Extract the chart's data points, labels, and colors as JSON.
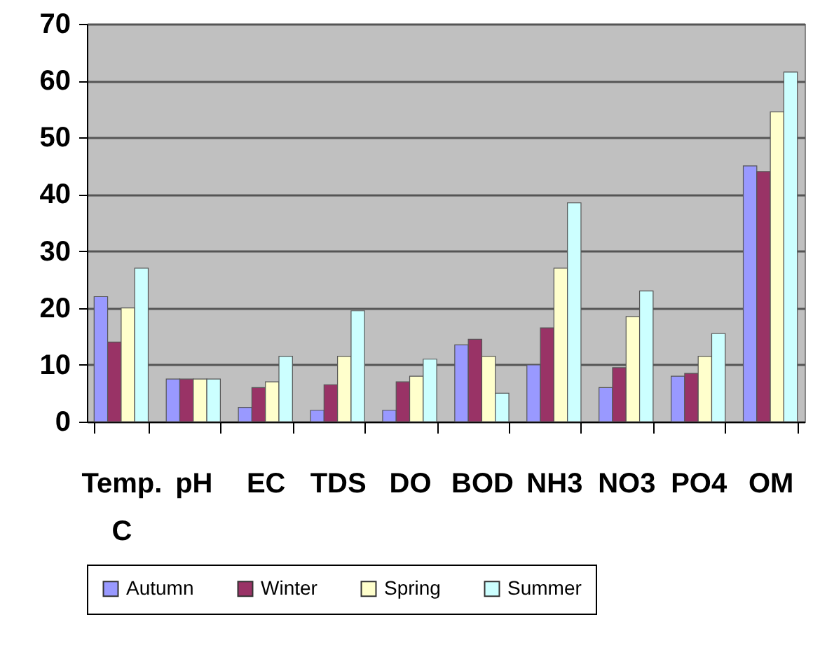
{
  "chart_data": {
    "type": "bar",
    "categories": [
      "Temp. C",
      "pH",
      "EC",
      "TDS",
      "DO",
      "BOD",
      "NH3",
      "NO3",
      "PO4",
      "OM"
    ],
    "series": [
      {
        "name": "Autumn",
        "color": "#9999ff",
        "values": [
          22,
          7.5,
          2.5,
          2,
          2,
          13.5,
          10,
          6,
          8,
          45
        ]
      },
      {
        "name": "Winter",
        "color": "#993366",
        "values": [
          14,
          7.5,
          6,
          6.5,
          7,
          14.5,
          16.5,
          9.5,
          8.5,
          44
        ]
      },
      {
        "name": "Spring",
        "color": "#ffffcc",
        "values": [
          20,
          7.5,
          7,
          11.5,
          8,
          11.5,
          27,
          18.5,
          11.5,
          54.5
        ]
      },
      {
        "name": "Summer",
        "color": "#ccffff",
        "values": [
          27,
          7.5,
          11.5,
          19.5,
          11,
          5,
          38.5,
          23,
          15.5,
          61.5
        ]
      }
    ],
    "ylim": [
      0,
      70
    ],
    "yticks": [
      0,
      10,
      20,
      30,
      40,
      50,
      60,
      70
    ],
    "grid": "y",
    "legend": "bottom"
  }
}
